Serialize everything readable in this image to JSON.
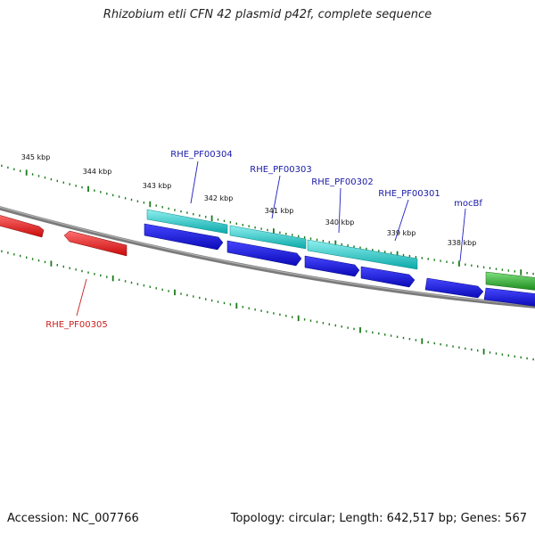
{
  "title": "Rhizobium etli CFN 42 plasmid p42f, complete sequence",
  "footer": {
    "accession": "Accession: NC_007766",
    "summary": "Topology: circular; Length: 642,517 bp; Genes: 567"
  },
  "ruler": {
    "labels": [
      "345 kbp",
      "344 kbp",
      "343 kbp",
      "342 kbp",
      "341 kbp",
      "340 kbp",
      "339 kbp",
      "338 kbp"
    ]
  },
  "genes": [
    {
      "label": "RHE_PF00304",
      "color": "#1a1aa8"
    },
    {
      "label": "RHE_PF00303",
      "color": "#1a1aa8"
    },
    {
      "label": "RHE_PF00302",
      "color": "#1a1aa8"
    },
    {
      "label": "RHE_PF00301",
      "color": "#1a1aa8"
    },
    {
      "label": "mocBf",
      "color": "#1a1aa8"
    },
    {
      "label": "RHE_PF00305",
      "color": "#c81e1e"
    }
  ],
  "colors": {
    "backbone": "#808080",
    "forward_cds": "#1010dd",
    "forward_cds_top": "#3a3aff",
    "reverse_cds": "#e81010",
    "reverse_cds_top": "#ff6060",
    "gene_bar": "#10b8b8",
    "gene_bar_top": "#70e8e8",
    "green_bar": "#2a9a2a",
    "green_bar_top": "#70d070",
    "tick": "#1a7a1a"
  }
}
